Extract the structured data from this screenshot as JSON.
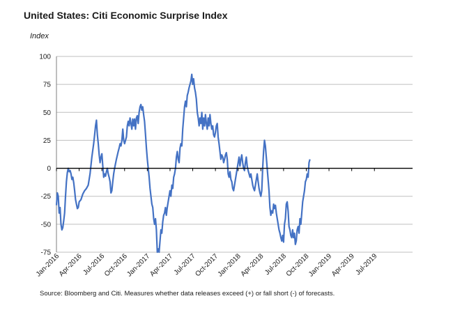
{
  "chart_data": {
    "type": "line",
    "title": "United States: Citi Economic Surprise Index",
    "ylabel": "Index",
    "xlabel": "",
    "source": "Source: Bloomberg and Citi.  Measures whether data releases exceed (+) or fall short (-) of forecasts.",
    "ylim": [
      -75,
      100
    ],
    "yticks": [
      100,
      75,
      50,
      25,
      0,
      -25,
      -50,
      -75
    ],
    "xlim": [
      2016.0,
      2019.92
    ],
    "xticks": [
      {
        "label": "Jan-2016",
        "x": 2016.0
      },
      {
        "label": "Apr-2016",
        "x": 2016.25
      },
      {
        "label": "Jul-2016",
        "x": 2016.5
      },
      {
        "label": "Oct-2016",
        "x": 2016.75
      },
      {
        "label": "Jan-2017",
        "x": 2017.0
      },
      {
        "label": "Apr-2017",
        "x": 2017.25
      },
      {
        "label": "Jul-2017",
        "x": 2017.5
      },
      {
        "label": "Oct-2017",
        "x": 2017.75
      },
      {
        "label": "Jan-2018",
        "x": 2018.0
      },
      {
        "label": "Apr-2018",
        "x": 2018.25
      },
      {
        "label": "Jul-2018",
        "x": 2018.5
      },
      {
        "label": "Oct-2018",
        "x": 2018.75
      },
      {
        "label": "Jan-2019",
        "x": 2019.0
      },
      {
        "label": "Apr-2019",
        "x": 2019.25
      },
      {
        "label": "Jul-2019",
        "x": 2019.5
      }
    ],
    "grid": true,
    "series": [
      {
        "name": "Citi Economic Surprise Index",
        "color": "#4472c4",
        "points": [
          [
            2016.0,
            -33
          ],
          [
            2016.01,
            -22
          ],
          [
            2016.02,
            -25
          ],
          [
            2016.03,
            -40
          ],
          [
            2016.04,
            -35
          ],
          [
            2016.05,
            -50
          ],
          [
            2016.06,
            -55
          ],
          [
            2016.07,
            -53
          ],
          [
            2016.08,
            -47
          ],
          [
            2016.09,
            -40
          ],
          [
            2016.1,
            -25
          ],
          [
            2016.11,
            -12
          ],
          [
            2016.12,
            -4
          ],
          [
            2016.13,
            0
          ],
          [
            2016.14,
            -3
          ],
          [
            2016.15,
            -2
          ],
          [
            2016.16,
            -5
          ],
          [
            2016.17,
            -10
          ],
          [
            2016.18,
            -8
          ],
          [
            2016.19,
            -13
          ],
          [
            2016.2,
            -20
          ],
          [
            2016.21,
            -28
          ],
          [
            2016.22,
            -32
          ],
          [
            2016.23,
            -36
          ],
          [
            2016.24,
            -35
          ],
          [
            2016.25,
            -30
          ],
          [
            2016.27,
            -28
          ],
          [
            2016.29,
            -23
          ],
          [
            2016.31,
            -20
          ],
          [
            2016.33,
            -18
          ],
          [
            2016.35,
            -15
          ],
          [
            2016.37,
            -5
          ],
          [
            2016.39,
            10
          ],
          [
            2016.41,
            22
          ],
          [
            2016.42,
            30
          ],
          [
            2016.43,
            38
          ],
          [
            2016.44,
            43
          ],
          [
            2016.45,
            30
          ],
          [
            2016.46,
            22
          ],
          [
            2016.47,
            12
          ],
          [
            2016.48,
            5
          ],
          [
            2016.49,
            10
          ],
          [
            2016.5,
            13
          ],
          [
            2016.51,
            2
          ],
          [
            2016.52,
            -8
          ],
          [
            2016.53,
            -5
          ],
          [
            2016.54,
            -7
          ],
          [
            2016.55,
            -3
          ],
          [
            2016.56,
            0
          ],
          [
            2016.57,
            -5
          ],
          [
            2016.58,
            -8
          ],
          [
            2016.59,
            -12
          ],
          [
            2016.6,
            -22
          ],
          [
            2016.61,
            -20
          ],
          [
            2016.62,
            -12
          ],
          [
            2016.63,
            -5
          ],
          [
            2016.64,
            0
          ],
          [
            2016.66,
            8
          ],
          [
            2016.68,
            15
          ],
          [
            2016.69,
            18
          ],
          [
            2016.7,
            22
          ],
          [
            2016.71,
            20
          ],
          [
            2016.72,
            25
          ],
          [
            2016.73,
            35
          ],
          [
            2016.74,
            25
          ],
          [
            2016.75,
            22
          ],
          [
            2016.76,
            25
          ],
          [
            2016.77,
            28
          ],
          [
            2016.78,
            38
          ],
          [
            2016.79,
            42
          ],
          [
            2016.8,
            38
          ],
          [
            2016.81,
            45
          ],
          [
            2016.82,
            40
          ],
          [
            2016.83,
            35
          ],
          [
            2016.84,
            44
          ],
          [
            2016.85,
            38
          ],
          [
            2016.86,
            44
          ],
          [
            2016.87,
            35
          ],
          [
            2016.88,
            45
          ],
          [
            2016.89,
            47
          ],
          [
            2016.9,
            40
          ],
          [
            2016.91,
            50
          ],
          [
            2016.92,
            55
          ],
          [
            2016.93,
            57
          ],
          [
            2016.94,
            52
          ],
          [
            2016.95,
            55
          ],
          [
            2016.96,
            48
          ],
          [
            2016.97,
            42
          ],
          [
            2016.98,
            30
          ],
          [
            2016.99,
            18
          ],
          [
            2017.0,
            8
          ],
          [
            2017.01,
            0
          ],
          [
            2017.02,
            -8
          ],
          [
            2017.03,
            -18
          ],
          [
            2017.04,
            -25
          ],
          [
            2017.05,
            -32
          ],
          [
            2017.06,
            -35
          ],
          [
            2017.07,
            -45
          ],
          [
            2017.08,
            -50
          ],
          [
            2017.09,
            -45
          ],
          [
            2017.1,
            -55
          ],
          [
            2017.11,
            -75
          ],
          [
            2017.12,
            -72
          ],
          [
            2017.13,
            -75
          ],
          [
            2017.14,
            -65
          ],
          [
            2017.15,
            -55
          ],
          [
            2017.16,
            -58
          ],
          [
            2017.17,
            -48
          ],
          [
            2017.18,
            -42
          ],
          [
            2017.19,
            -40
          ],
          [
            2017.2,
            -35
          ],
          [
            2017.21,
            -42
          ],
          [
            2017.22,
            -35
          ],
          [
            2017.23,
            -30
          ],
          [
            2017.24,
            -25
          ],
          [
            2017.25,
            -20
          ],
          [
            2017.26,
            -25
          ],
          [
            2017.27,
            -15
          ],
          [
            2017.28,
            -18
          ],
          [
            2017.29,
            -8
          ],
          [
            2017.3,
            -5
          ],
          [
            2017.31,
            0
          ],
          [
            2017.32,
            10
          ],
          [
            2017.33,
            15
          ],
          [
            2017.34,
            8
          ],
          [
            2017.35,
            5
          ],
          [
            2017.36,
            18
          ],
          [
            2017.37,
            22
          ],
          [
            2017.38,
            20
          ],
          [
            2017.39,
            35
          ],
          [
            2017.4,
            45
          ],
          [
            2017.41,
            55
          ],
          [
            2017.42,
            60
          ],
          [
            2017.43,
            55
          ],
          [
            2017.44,
            65
          ],
          [
            2017.45,
            68
          ],
          [
            2017.46,
            72
          ],
          [
            2017.47,
            75
          ],
          [
            2017.48,
            78
          ],
          [
            2017.49,
            84
          ],
          [
            2017.5,
            75
          ],
          [
            2017.51,
            80
          ],
          [
            2017.52,
            72
          ],
          [
            2017.53,
            68
          ],
          [
            2017.54,
            62
          ],
          [
            2017.55,
            50
          ],
          [
            2017.56,
            45
          ],
          [
            2017.57,
            38
          ],
          [
            2017.58,
            45
          ],
          [
            2017.59,
            40
          ],
          [
            2017.6,
            50
          ],
          [
            2017.61,
            35
          ],
          [
            2017.62,
            45
          ],
          [
            2017.63,
            38
          ],
          [
            2017.64,
            48
          ],
          [
            2017.65,
            40
          ],
          [
            2017.66,
            35
          ],
          [
            2017.67,
            45
          ],
          [
            2017.68,
            38
          ],
          [
            2017.69,
            48
          ],
          [
            2017.7,
            40
          ],
          [
            2017.71,
            35
          ],
          [
            2017.72,
            38
          ],
          [
            2017.73,
            30
          ],
          [
            2017.74,
            28
          ],
          [
            2017.75,
            32
          ],
          [
            2017.76,
            38
          ],
          [
            2017.77,
            40
          ],
          [
            2017.78,
            28
          ],
          [
            2017.79,
            22
          ],
          [
            2017.8,
            15
          ],
          [
            2017.81,
            8
          ],
          [
            2017.82,
            12
          ],
          [
            2017.83,
            10
          ],
          [
            2017.84,
            5
          ],
          [
            2017.85,
            8
          ],
          [
            2017.86,
            12
          ],
          [
            2017.87,
            14
          ],
          [
            2017.88,
            8
          ],
          [
            2017.89,
            -5
          ],
          [
            2017.9,
            -8
          ],
          [
            2017.91,
            -3
          ],
          [
            2017.92,
            -10
          ],
          [
            2017.93,
            -12
          ],
          [
            2017.94,
            -18
          ],
          [
            2017.95,
            -20
          ],
          [
            2017.96,
            -15
          ],
          [
            2017.97,
            -10
          ],
          [
            2017.98,
            -5
          ],
          [
            2017.99,
            0
          ],
          [
            2018.0,
            5
          ],
          [
            2018.01,
            10
          ],
          [
            2018.02,
            2
          ],
          [
            2018.03,
            8
          ],
          [
            2018.04,
            12
          ],
          [
            2018.05,
            5
          ],
          [
            2018.06,
            0
          ],
          [
            2018.07,
            -2
          ],
          [
            2018.08,
            5
          ],
          [
            2018.09,
            10
          ],
          [
            2018.1,
            2
          ],
          [
            2018.11,
            -2
          ],
          [
            2018.12,
            -5
          ],
          [
            2018.13,
            -8
          ],
          [
            2018.14,
            -5
          ],
          [
            2018.15,
            -10
          ],
          [
            2018.16,
            -15
          ],
          [
            2018.17,
            -18
          ],
          [
            2018.18,
            -20
          ],
          [
            2018.19,
            -15
          ],
          [
            2018.2,
            -10
          ],
          [
            2018.21,
            -5
          ],
          [
            2018.22,
            -12
          ],
          [
            2018.23,
            -18
          ],
          [
            2018.24,
            -22
          ],
          [
            2018.25,
            -25
          ],
          [
            2018.26,
            -20
          ],
          [
            2018.27,
            0
          ],
          [
            2018.28,
            15
          ],
          [
            2018.29,
            25
          ],
          [
            2018.3,
            20
          ],
          [
            2018.31,
            10
          ],
          [
            2018.32,
            0
          ],
          [
            2018.33,
            -10
          ],
          [
            2018.34,
            -20
          ],
          [
            2018.35,
            -35
          ],
          [
            2018.36,
            -42
          ],
          [
            2018.37,
            -38
          ],
          [
            2018.38,
            -40
          ],
          [
            2018.39,
            -32
          ],
          [
            2018.4,
            -36
          ],
          [
            2018.41,
            -33
          ],
          [
            2018.42,
            -40
          ],
          [
            2018.43,
            -45
          ],
          [
            2018.44,
            -50
          ],
          [
            2018.45,
            -55
          ],
          [
            2018.46,
            -58
          ],
          [
            2018.47,
            -62
          ],
          [
            2018.48,
            -65
          ],
          [
            2018.49,
            -60
          ],
          [
            2018.5,
            -66
          ],
          [
            2018.51,
            -50
          ],
          [
            2018.52,
            -45
          ],
          [
            2018.53,
            -32
          ],
          [
            2018.54,
            -30
          ],
          [
            2018.55,
            -38
          ],
          [
            2018.56,
            -52
          ],
          [
            2018.57,
            -55
          ],
          [
            2018.58,
            -60
          ],
          [
            2018.59,
            -62
          ],
          [
            2018.6,
            -55
          ],
          [
            2018.61,
            -62
          ],
          [
            2018.62,
            -58
          ],
          [
            2018.63,
            -68
          ],
          [
            2018.64,
            -65
          ],
          [
            2018.65,
            -55
          ],
          [
            2018.66,
            -52
          ],
          [
            2018.67,
            -58
          ],
          [
            2018.68,
            -45
          ],
          [
            2018.69,
            -50
          ],
          [
            2018.7,
            -40
          ],
          [
            2018.71,
            -30
          ],
          [
            2018.72,
            -25
          ],
          [
            2018.73,
            -20
          ],
          [
            2018.74,
            -12
          ],
          [
            2018.75,
            -10
          ],
          [
            2018.76,
            -5
          ],
          [
            2018.77,
            -8
          ],
          [
            2018.78,
            5
          ],
          [
            2018.79,
            8
          ]
        ]
      }
    ]
  },
  "labels": {
    "title": "United States: Citi Economic Surprise Index",
    "ylabel": "Index",
    "source": "Source: Bloomberg and Citi.  Measures whether data releases exceed (+) or fall short (-) of forecasts."
  }
}
